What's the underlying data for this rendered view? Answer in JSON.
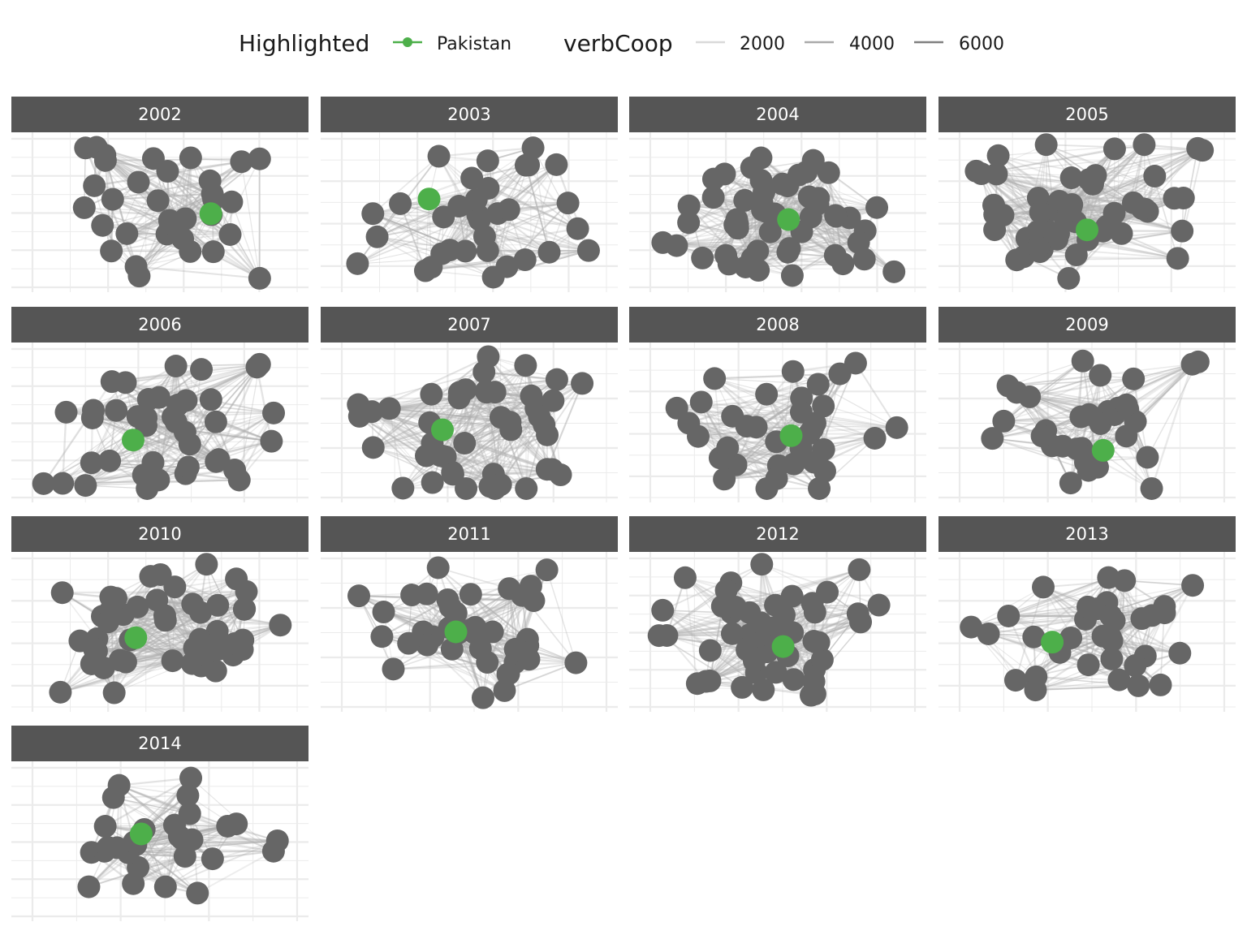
{
  "legend": {
    "highlight_title": "Highlighted",
    "highlight_label": "Pakistan",
    "weight_title": "verbCoop",
    "weight_labels": [
      "2000",
      "4000",
      "6000"
    ]
  },
  "colors": {
    "highlight": "#4daf4a",
    "node": "#666666",
    "strip": "#555555",
    "grid": "#ebebeb",
    "edge": "#b0b0b0",
    "weight_keys": [
      "#d9d9d9",
      "#aaaaaa",
      "#808080"
    ]
  },
  "chart_data": {
    "type": "network",
    "facet_variable": "year",
    "facets": [
      {
        "year": "2002",
        "node_count": 34,
        "highlight": {
          "x": 0.69,
          "y": 0.51
        }
      },
      {
        "year": "2003",
        "node_count": 33,
        "highlight": {
          "x": 0.35,
          "y": 0.41
        }
      },
      {
        "year": "2004",
        "node_count": 52,
        "highlight": {
          "x": 0.54,
          "y": 0.55
        }
      },
      {
        "year": "2005",
        "node_count": 54,
        "highlight": {
          "x": 0.5,
          "y": 0.62
        }
      },
      {
        "year": "2006",
        "node_count": 40,
        "highlight": {
          "x": 0.4,
          "y": 0.62
        }
      },
      {
        "year": "2007",
        "node_count": 45,
        "highlight": {
          "x": 0.4,
          "y": 0.55
        }
      },
      {
        "year": "2008",
        "node_count": 36,
        "highlight": {
          "x": 0.55,
          "y": 0.59
        }
      },
      {
        "year": "2009",
        "node_count": 33,
        "highlight": {
          "x": 0.56,
          "y": 0.69
        }
      },
      {
        "year": "2010",
        "node_count": 48,
        "highlight": {
          "x": 0.41,
          "y": 0.54
        }
      },
      {
        "year": "2011",
        "node_count": 40,
        "highlight": {
          "x": 0.45,
          "y": 0.5
        }
      },
      {
        "year": "2012",
        "node_count": 52,
        "highlight": {
          "x": 0.52,
          "y": 0.6
        }
      },
      {
        "year": "2013",
        "node_count": 34,
        "highlight": {
          "x": 0.37,
          "y": 0.57
        }
      },
      {
        "year": "2014",
        "node_count": 29,
        "highlight": {
          "x": 0.43,
          "y": 0.45
        }
      }
    ]
  }
}
